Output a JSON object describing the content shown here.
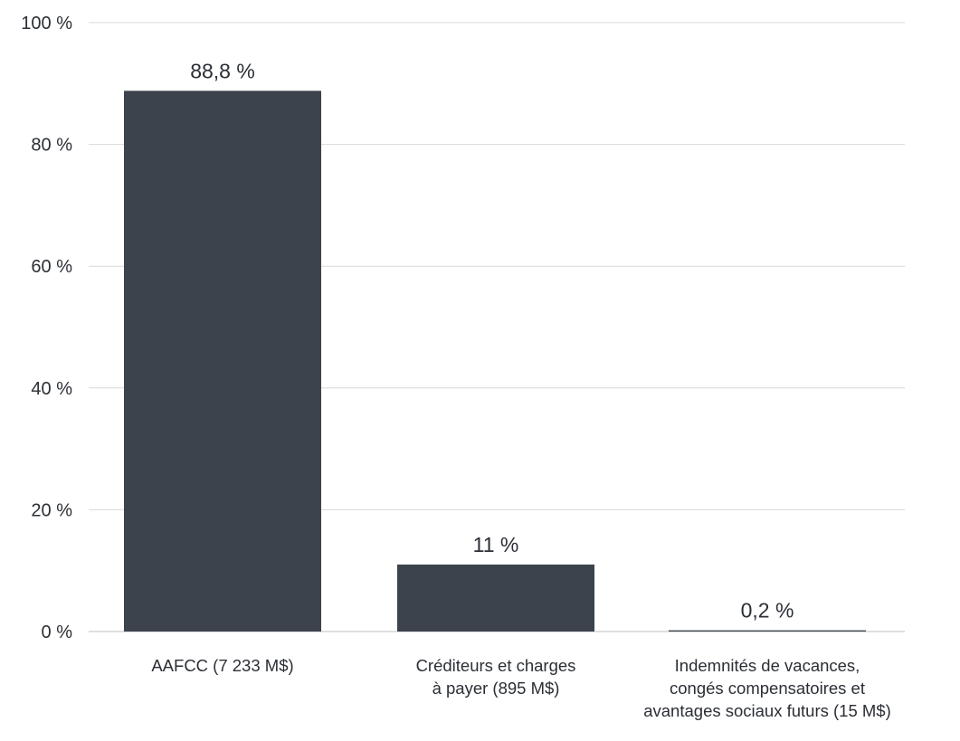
{
  "chart_data": {
    "type": "bar",
    "title": "",
    "xlabel": "",
    "ylabel": "",
    "ylim": [
      0,
      100
    ],
    "yticks": [
      0,
      20,
      40,
      60,
      80,
      100
    ],
    "ytick_labels": [
      "0 %",
      "20 %",
      "40 %",
      "60 %",
      "80 %",
      "100 %"
    ],
    "grid": true,
    "legend": "none",
    "categories": [
      [
        "AAFCC (7 233 M$)"
      ],
      [
        "Créditeurs et charges",
        "à payer (895 M$)"
      ],
      [
        "Indemnités de vacances,",
        "congés compensatoires et",
        "avantages sociaux futurs (15 M$)"
      ]
    ],
    "values": [
      88.8,
      11,
      0.2
    ],
    "data_labels": [
      "88,8 %",
      "11 %",
      "0,2 %"
    ],
    "colors": {
      "bar": "#3c434c",
      "text": "#2b2f35",
      "grid": "#d9d9d9"
    }
  }
}
